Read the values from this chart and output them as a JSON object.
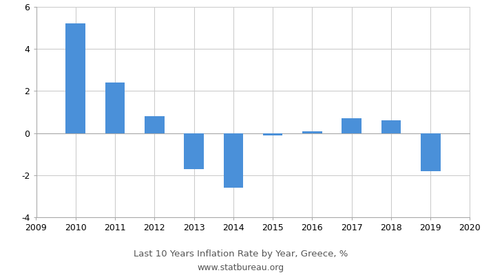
{
  "years": [
    2010,
    2011,
    2012,
    2013,
    2014,
    2015,
    2016,
    2017,
    2018,
    2019
  ],
  "values": [
    5.2,
    2.4,
    0.8,
    -1.7,
    -2.6,
    -0.1,
    0.1,
    0.7,
    0.6,
    -1.8
  ],
  "bar_color": "#4a90d9",
  "bar_width": 0.5,
  "xlim": [
    2009,
    2020
  ],
  "ylim": [
    -4,
    6
  ],
  "yticks": [
    -4,
    -2,
    0,
    2,
    4,
    6
  ],
  "xticks": [
    2009,
    2010,
    2011,
    2012,
    2013,
    2014,
    2015,
    2016,
    2017,
    2018,
    2019,
    2020
  ],
  "title": "Last 10 Years Inflation Rate by Year, Greece, %",
  "subtitle": "www.statbureau.org",
  "title_fontsize": 9.5,
  "subtitle_fontsize": 9,
  "text_color": "#555555",
  "bg_color": "#ffffff",
  "grid_color": "#cccccc",
  "spine_color": "#aaaaaa",
  "tick_label_fontsize": 9
}
